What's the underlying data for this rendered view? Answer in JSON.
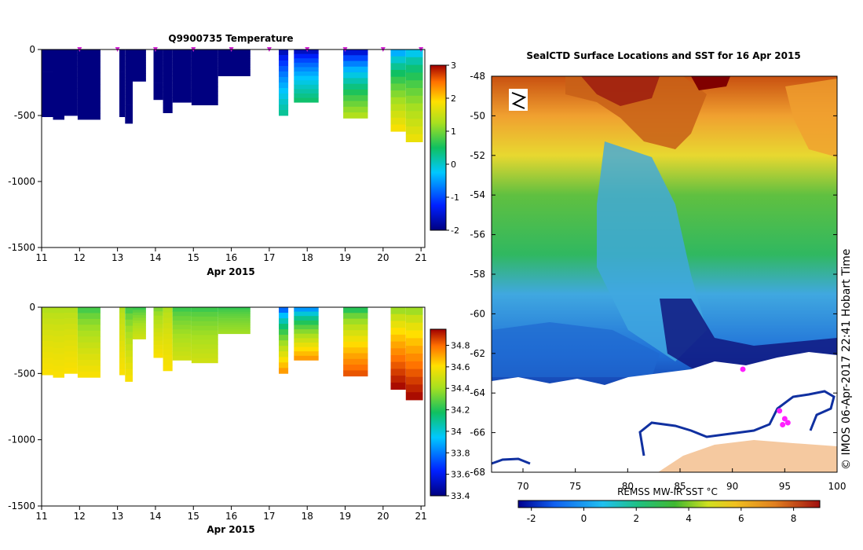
{
  "chart_data": [
    {
      "type": "heatmap",
      "title": "Q9900735  Temperature",
      "xlabel": "Apr 2015",
      "x_ticks": [
        "11",
        "12",
        "13",
        "14",
        "15",
        "16",
        "17",
        "18",
        "19",
        "20",
        "21"
      ],
      "xlim": [
        11,
        21.1
      ],
      "y_ticks": [
        "0",
        "-500",
        "-1000",
        "-1500"
      ],
      "ylim": [
        -1500,
        0
      ],
      "colorbar_ticks": [
        "3",
        "2",
        "1",
        "0",
        "-1",
        "-2"
      ],
      "colorbar_range": [
        -2,
        3
      ],
      "profile_marker_days": [
        12,
        13,
        14,
        15,
        16,
        17,
        18,
        19,
        20,
        21
      ],
      "profiles": [
        {
          "x0": 11.0,
          "x1": 11.3,
          "depth": 510,
          "surface": -2,
          "bottom": -2
        },
        {
          "x0": 11.3,
          "x1": 11.6,
          "depth": 530,
          "surface": -2,
          "bottom": -2
        },
        {
          "x0": 11.6,
          "x1": 11.95,
          "depth": 500,
          "surface": -2,
          "bottom": -2
        },
        {
          "x0": 11.95,
          "x1": 12.55,
          "depth": 530,
          "surface": -2,
          "bottom": -2
        },
        {
          "x0": 13.05,
          "x1": 13.2,
          "depth": 510,
          "surface": -2,
          "bottom": -2
        },
        {
          "x0": 13.2,
          "x1": 13.4,
          "depth": 560,
          "surface": -2,
          "bottom": -2
        },
        {
          "x0": 13.4,
          "x1": 13.75,
          "depth": 240,
          "surface": -2,
          "bottom": -2
        },
        {
          "x0": 13.95,
          "x1": 14.2,
          "depth": 380,
          "surface": -2,
          "bottom": -2
        },
        {
          "x0": 14.2,
          "x1": 14.45,
          "depth": 480,
          "surface": -2,
          "bottom": -2
        },
        {
          "x0": 14.45,
          "x1": 14.95,
          "depth": 400,
          "surface": -2,
          "bottom": -2
        },
        {
          "x0": 14.95,
          "x1": 15.65,
          "depth": 420,
          "surface": -2,
          "bottom": -2
        },
        {
          "x0": 15.65,
          "x1": 16.5,
          "depth": 200,
          "surface": -2,
          "bottom": -2
        },
        {
          "x0": 17.25,
          "x1": 17.5,
          "depth": 500,
          "surface": -2,
          "bottom": 0.3
        },
        {
          "x0": 17.65,
          "x1": 18.3,
          "depth": 400,
          "surface": -2,
          "bottom": 0.5
        },
        {
          "x0": 18.95,
          "x1": 19.6,
          "depth": 520,
          "surface": -2,
          "bottom": 1.4
        },
        {
          "x0": 20.2,
          "x1": 20.6,
          "depth": 620,
          "surface": -0.8,
          "bottom": 1.9
        },
        {
          "x0": 20.6,
          "x1": 21.05,
          "depth": 700,
          "surface": -0.5,
          "bottom": 1.8
        }
      ]
    },
    {
      "type": "heatmap",
      "xlabel": "Apr 2015",
      "x_ticks": [
        "11",
        "12",
        "13",
        "14",
        "15",
        "16",
        "17",
        "18",
        "19",
        "20",
        "21"
      ],
      "xlim": [
        11,
        21.1
      ],
      "y_ticks": [
        "0",
        "-500",
        "-1000",
        "-1500"
      ],
      "ylim": [
        -1500,
        0
      ],
      "colorbar_ticks": [
        "34.8",
        "34.6",
        "34.4",
        "34.2",
        "34",
        "33.8",
        "33.6",
        "33.4"
      ],
      "colorbar_range": [
        33.4,
        34.95
      ],
      "profiles": [
        {
          "x0": 11.0,
          "x1": 11.3,
          "depth": 510,
          "surface": 34.4,
          "bottom": 34.6
        },
        {
          "x0": 11.3,
          "x1": 11.6,
          "depth": 530,
          "surface": 34.4,
          "bottom": 34.6
        },
        {
          "x0": 11.6,
          "x1": 11.95,
          "depth": 500,
          "surface": 34.4,
          "bottom": 34.6
        },
        {
          "x0": 11.95,
          "x1": 12.55,
          "depth": 530,
          "surface": 34.2,
          "bottom": 34.6
        },
        {
          "x0": 13.05,
          "x1": 13.2,
          "depth": 510,
          "surface": 34.4,
          "bottom": 34.6
        },
        {
          "x0": 13.2,
          "x1": 13.4,
          "depth": 560,
          "surface": 34.2,
          "bottom": 34.6
        },
        {
          "x0": 13.4,
          "x1": 13.75,
          "depth": 240,
          "surface": 34.2,
          "bottom": 34.5
        },
        {
          "x0": 13.95,
          "x1": 14.2,
          "depth": 380,
          "surface": 34.3,
          "bottom": 34.6
        },
        {
          "x0": 14.2,
          "x1": 14.45,
          "depth": 480,
          "surface": 34.4,
          "bottom": 34.6
        },
        {
          "x0": 14.45,
          "x1": 14.95,
          "depth": 400,
          "surface": 34.2,
          "bottom": 34.5
        },
        {
          "x0": 14.95,
          "x1": 15.65,
          "depth": 420,
          "surface": 34.2,
          "bottom": 34.5
        },
        {
          "x0": 15.65,
          "x1": 16.5,
          "depth": 200,
          "surface": 34.2,
          "bottom": 34.4
        },
        {
          "x0": 17.25,
          "x1": 17.5,
          "depth": 500,
          "surface": 33.6,
          "bottom": 34.75
        },
        {
          "x0": 17.65,
          "x1": 18.3,
          "depth": 400,
          "surface": 33.7,
          "bottom": 34.75
        },
        {
          "x0": 18.95,
          "x1": 19.6,
          "depth": 520,
          "surface": 34.1,
          "bottom": 34.85
        },
        {
          "x0": 20.2,
          "x1": 20.6,
          "depth": 620,
          "surface": 34.3,
          "bottom": 34.95
        },
        {
          "x0": 20.6,
          "x1": 21.05,
          "depth": 700,
          "surface": 34.3,
          "bottom": 34.95
        }
      ]
    },
    {
      "type": "heatmap",
      "title": "SealCTD Surface Locations and SST for 16 Apr 2015",
      "x_ticks": [
        "70",
        "75",
        "80",
        "85",
        "90",
        "95",
        "100"
      ],
      "xlim": [
        67,
        100
      ],
      "y_ticks": [
        "-48",
        "-50",
        "-52",
        "-54",
        "-56",
        "-58",
        "-60",
        "-62",
        "-64",
        "-66",
        "-68"
      ],
      "ylim": [
        -68,
        -48
      ],
      "colorbar_label": "REMSS MW-IR SST °C",
      "colorbar_ticks": [
        "-2",
        "0",
        "2",
        "4",
        "6",
        "8"
      ],
      "colorbar_range": [
        -2.5,
        9
      ],
      "side_label": "© IMOS 06-Apr-2017 22:41 Hobart Time",
      "ice_edge_lat": -63.5,
      "land_lat": -66.9,
      "seal_positions": [
        {
          "lon": 91,
          "lat": -62.8
        },
        {
          "lon": 95,
          "lat": -65.3
        },
        {
          "lon": 94.8,
          "lat": -65.6
        },
        {
          "lon": 95.3,
          "lat": -65.5
        },
        {
          "lon": 94.5,
          "lat": -64.9
        }
      ]
    }
  ]
}
